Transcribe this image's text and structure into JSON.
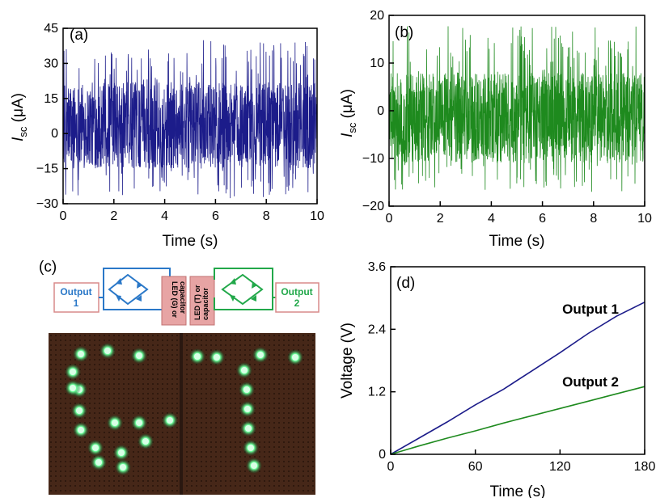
{
  "chart_data": [
    {
      "id": "a",
      "type": "line",
      "panel_label": "(a)",
      "xlabel": "Time (s)",
      "ylabel_main": "I",
      "ylabel_sub": "sc",
      "ylabel_unit": " (μA)",
      "xlim": [
        0,
        10
      ],
      "ylim": [
        -30,
        45
      ],
      "xticks": [
        "0",
        "2",
        "4",
        "6",
        "8",
        "10"
      ],
      "yticks": [
        "−30",
        "−15",
        "0",
        "15",
        "30",
        "45"
      ],
      "x_tick_values": [
        0,
        2,
        4,
        6,
        8,
        10
      ],
      "y_tick_values": [
        -30,
        -15,
        0,
        15,
        30,
        45
      ],
      "series": [
        {
          "color": "#1c1c8a",
          "baseline": 0,
          "amplitude_pos": 40,
          "amplitude_neg": -28,
          "typical_band": [
            -15,
            22
          ]
        }
      ]
    },
    {
      "id": "b",
      "type": "line",
      "panel_label": "(b)",
      "xlabel": "Time (s)",
      "ylabel_main": "I",
      "ylabel_sub": "sc",
      "ylabel_unit": " (μA)",
      "xlim": [
        0,
        10
      ],
      "ylim": [
        -20,
        20
      ],
      "xticks": [
        "0",
        "2",
        "4",
        "6",
        "8",
        "10"
      ],
      "yticks": [
        "−20",
        "−10",
        "0",
        "10",
        "20"
      ],
      "x_tick_values": [
        0,
        2,
        4,
        6,
        8,
        10
      ],
      "y_tick_values": [
        -20,
        -10,
        0,
        10,
        20
      ],
      "series": [
        {
          "color": "#1e8a1e",
          "baseline": -4,
          "amplitude_pos": 18,
          "amplitude_neg": -17,
          "typical_band": [
            -11,
            8
          ]
        }
      ]
    },
    {
      "id": "d",
      "type": "line",
      "panel_label": "(d)",
      "xlabel": "Time (s)",
      "ylabel": "Voltage (V)",
      "xlim": [
        0,
        180
      ],
      "ylim": [
        0,
        3.6
      ],
      "xticks": [
        "0",
        "60",
        "120",
        "180"
      ],
      "yticks": [
        "0",
        "1.2",
        "2.4",
        "3.6"
      ],
      "x_tick_values": [
        0,
        60,
        120,
        180
      ],
      "y_tick_values": [
        0,
        1.2,
        2.4,
        3.6
      ],
      "series": [
        {
          "name": "Output 1",
          "color": "#1c1c8a",
          "x": [
            0,
            20,
            40,
            60,
            80,
            100,
            120,
            140,
            160,
            180
          ],
          "y": [
            0,
            0.31,
            0.62,
            0.95,
            1.25,
            1.6,
            1.95,
            2.32,
            2.65,
            2.92
          ]
        },
        {
          "name": "Output 2",
          "color": "#1e8a1e",
          "x": [
            0,
            20,
            40,
            60,
            80,
            100,
            120,
            140,
            160,
            180
          ],
          "y": [
            0,
            0.16,
            0.31,
            0.45,
            0.6,
            0.74,
            0.88,
            1.02,
            1.16,
            1.3
          ]
        }
      ]
    }
  ],
  "panel_c": {
    "panel_label": "(c)",
    "output1_line1": "Output",
    "output1_line2": "1",
    "output2_line1": "Output",
    "output2_line2": "2",
    "led_g_line1": "LED (G) or",
    "led_g_line2": "capacitor",
    "led_t_line1": "LED (T) or",
    "led_t_line2": "capacitor",
    "circuit1_color": "#2a78c8",
    "circuit2_color": "#22a84a",
    "box_fill": "#e7a4a4",
    "led_color": "#6cff9a",
    "board_color": "#4a2a1c"
  }
}
